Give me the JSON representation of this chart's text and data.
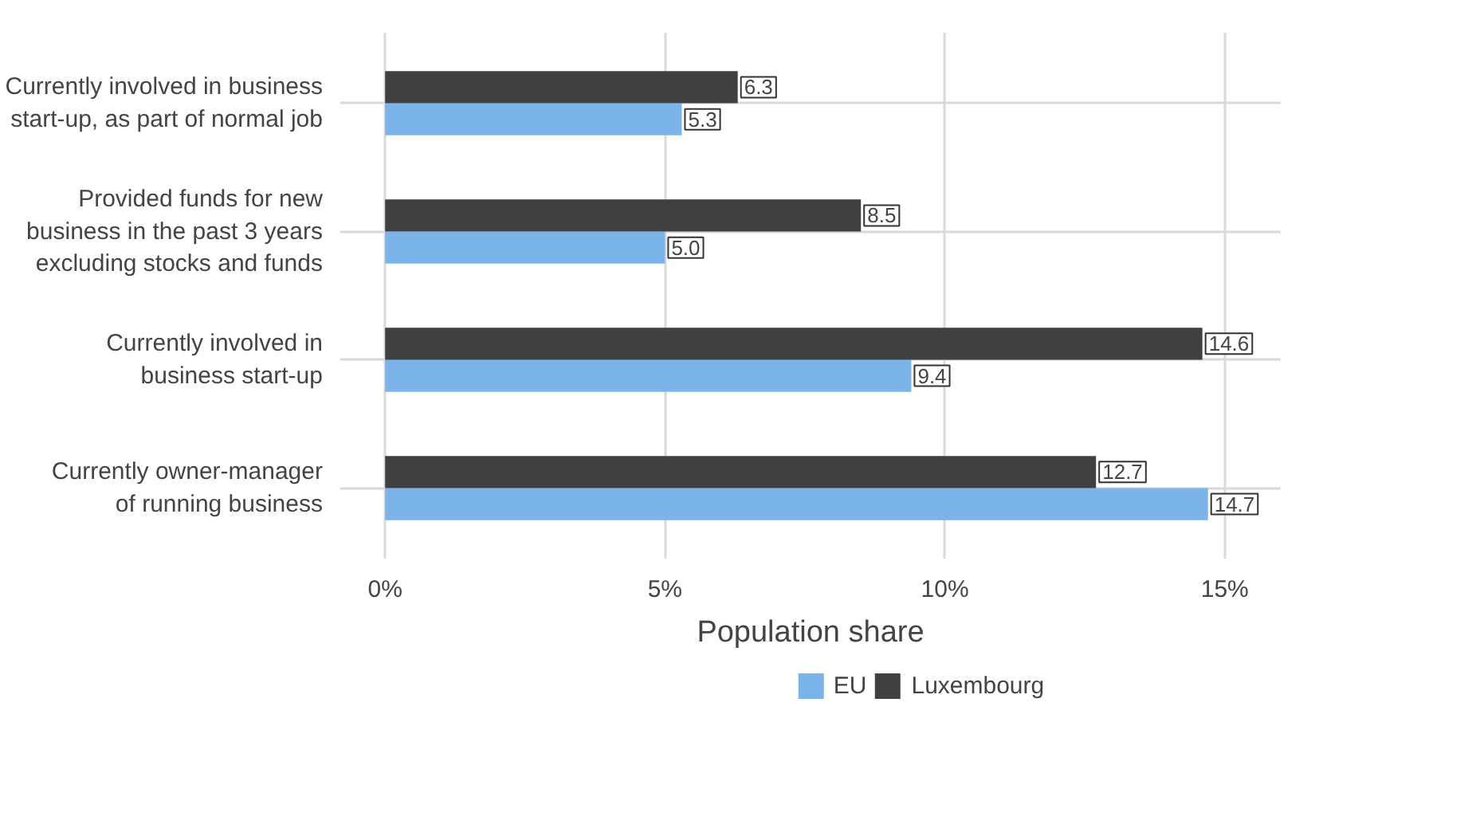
{
  "chart_data": {
    "type": "bar",
    "orientation": "horizontal",
    "xlabel": "Population share",
    "categories": [
      "Currently involved in business\nstart-up, as part of normal job",
      "Provided funds for new\nbusiness in the past 3 years\nexcluding stocks and funds",
      "Currently involved in\nbusiness start-up",
      "Currently owner-manager\nof running business"
    ],
    "series": [
      {
        "name": "EU",
        "color": "#7ab4ea",
        "values": [
          5.3,
          5.0,
          9.4,
          14.7
        ],
        "value_labels": [
          "5.3",
          "5.0",
          "9.4",
          "14.7"
        ]
      },
      {
        "name": "Luxembourg",
        "color": "#404043",
        "values": [
          6.3,
          8.5,
          14.6,
          12.7
        ],
        "value_labels": [
          "6.3",
          "8.5",
          "14.6",
          "12.7"
        ]
      }
    ],
    "xlim": [
      -0.8,
      16
    ],
    "xticks": [
      {
        "value": 0,
        "label": "0%"
      },
      {
        "value": 5,
        "label": "5%"
      },
      {
        "value": 10,
        "label": "10%"
      },
      {
        "value": 15,
        "label": "15%"
      }
    ],
    "grid": true,
    "legend": "bottom"
  }
}
